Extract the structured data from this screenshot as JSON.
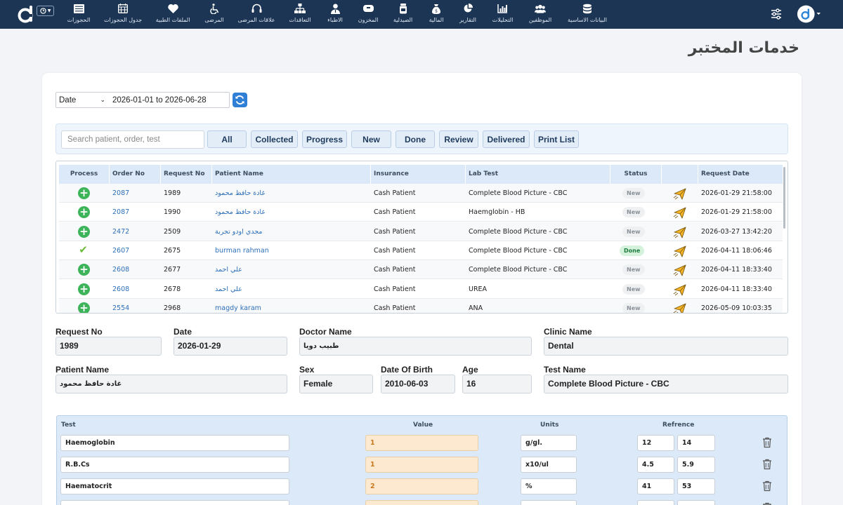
{
  "nav": {
    "mode_icon": "clock-icon",
    "items": [
      {
        "label": "البيانات الاساسية",
        "icon": "database-icon"
      },
      {
        "label": "الموظفين",
        "icon": "users-icon"
      },
      {
        "label": "التحليلات",
        "icon": "bar-chart-icon"
      },
      {
        "label": "التقارير",
        "icon": "pie-chart-icon"
      },
      {
        "label": "المالية",
        "icon": "money-bag-icon"
      },
      {
        "label": "الصيدلية",
        "icon": "pharmacy-icon"
      },
      {
        "label": "المخزون",
        "icon": "box-icon"
      },
      {
        "label": "الاطباء",
        "icon": "doctor-icon"
      },
      {
        "label": "التعاقدات",
        "icon": "sitemap-icon"
      },
      {
        "label": "علاقات المرضى",
        "icon": "headset-icon"
      },
      {
        "label": "المرضى",
        "icon": "wheelchair-icon"
      },
      {
        "label": "الملفات الطبية",
        "icon": "heart-icon"
      },
      {
        "label": "جدول الحجوزات",
        "icon": "calendar-icon"
      },
      {
        "label": "الحجوزات",
        "icon": "list-icon"
      }
    ]
  },
  "page_title": "خدمات المختبر",
  "date_filter": {
    "type": "Date",
    "range": "2026-01-01 to 2026-06-28"
  },
  "search": {
    "placeholder": "Search patient, order, test"
  },
  "filters": [
    "All",
    "Collected",
    "Progress",
    "New",
    "Done",
    "Review",
    "Delivered",
    "Print List"
  ],
  "table": {
    "columns": [
      "Process",
      "Order No",
      "Request No",
      "Patient Name",
      "Insurance",
      "Lab Test",
      "Status",
      "",
      "Request Date"
    ],
    "rows": [
      {
        "process": "add",
        "order_no": "2087",
        "request_no": "1989",
        "patient": "غادة حافظ محمود",
        "insurance": "Cash Patient",
        "test": "Complete Blood Picture - CBC",
        "status": "New",
        "date": "2026-01-29 21:58:00"
      },
      {
        "process": "add",
        "order_no": "2087",
        "request_no": "1990",
        "patient": "غادة حافظ محمود",
        "insurance": "Cash Patient",
        "test": "Haemglobin - HB",
        "status": "New",
        "date": "2026-01-29 21:58:00"
      },
      {
        "process": "add",
        "order_no": "2472",
        "request_no": "2509",
        "patient": "مجدي اودو تجربة",
        "insurance": "Cash Patient",
        "test": "Complete Blood Picture - CBC",
        "status": "New",
        "date": "2026-03-27 13:42:20"
      },
      {
        "process": "check",
        "order_no": "2607",
        "request_no": "2675",
        "patient": "burman rahman",
        "insurance": "Cash Patient",
        "test": "Complete Blood Picture - CBC",
        "status": "Done",
        "date": "2026-04-11 18:06:46"
      },
      {
        "process": "add",
        "order_no": "2608",
        "request_no": "2677",
        "patient": "علي احمد",
        "insurance": "Cash Patient",
        "test": "Complete Blood Picture - CBC",
        "status": "New",
        "date": "2026-04-11 18:33:40"
      },
      {
        "process": "add",
        "order_no": "2608",
        "request_no": "2678",
        "patient": "علي احمد",
        "insurance": "Cash Patient",
        "test": "UREA",
        "status": "New",
        "date": "2026-04-11 18:33:40"
      },
      {
        "process": "add",
        "order_no": "2554",
        "request_no": "2968",
        "patient": "magdy karam",
        "insurance": "Cash Patient",
        "test": "ANA",
        "status": "New",
        "date": "2026-05-09 10:03:35"
      }
    ]
  },
  "details": {
    "request_no": {
      "label": "Request No",
      "value": "1989"
    },
    "date": {
      "label": "Date",
      "value": "2026-01-29"
    },
    "doctor": {
      "label": "Doctor Name",
      "value": "طبيب دويا"
    },
    "clinic": {
      "label": "Clinic Name",
      "value": "Dental"
    },
    "patient": {
      "label": "Patient Name",
      "value": "غادة حافظ محمود"
    },
    "sex": {
      "label": "Sex",
      "value": "Female"
    },
    "dob": {
      "label": "Date Of Birth",
      "value": "2010-06-03"
    },
    "age": {
      "label": "Age",
      "value": "16"
    },
    "test": {
      "label": "Test Name",
      "value": "Complete Blood Picture - CBC"
    }
  },
  "results": {
    "headers": {
      "test": "Test",
      "value": "Value",
      "units": "Units",
      "reference": "Refrence"
    },
    "rows": [
      {
        "test": "Haemoglobin",
        "value": "1",
        "unit": "g/gl.",
        "ref_low": "12",
        "ref_high": "14"
      },
      {
        "test": "R.B.Cs",
        "value": "1",
        "unit": "x10/ul",
        "ref_low": "4.5",
        "ref_high": "5.9"
      },
      {
        "test": "Haematocrit",
        "value": "2",
        "unit": "%",
        "ref_low": "41",
        "ref_high": "53"
      },
      {
        "test": "",
        "value": "",
        "unit": "",
        "ref_low": "",
        "ref_high": ""
      }
    ]
  }
}
